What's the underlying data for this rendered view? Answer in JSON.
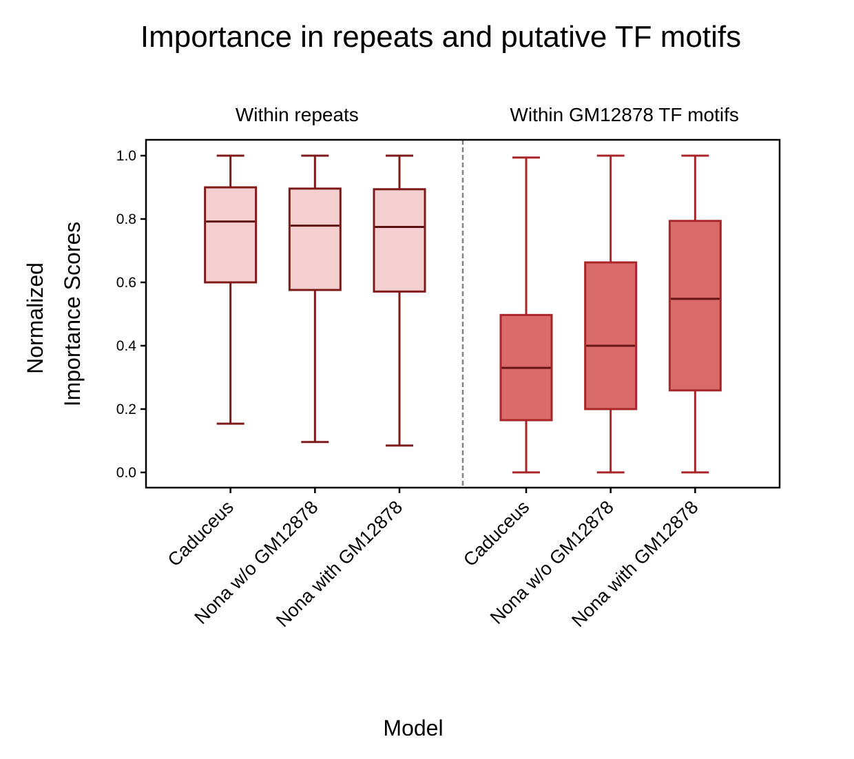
{
  "chart_data": {
    "type": "box",
    "title": "Importance in repeats and putative TF motifs",
    "xlabel": "Model",
    "ylabel_lines": [
      "Normalized",
      "Importance Scores"
    ],
    "ylim": [
      -0.048,
      1.05
    ],
    "yticks": [
      0.0,
      0.2,
      0.4,
      0.6,
      0.8,
      1.0
    ],
    "ytick_labels": [
      "0.0",
      "0.2",
      "0.4",
      "0.6",
      "0.8",
      "1.0"
    ],
    "xlim": [
      -1.0,
      6.5
    ],
    "divider_x": 2.75,
    "grid": false,
    "panels": [
      {
        "label": "Within repeats",
        "center_x": 1.0
      },
      {
        "label": "Within GM12878 TF motifs",
        "center_x": 4.5
      }
    ],
    "colors": {
      "repeats_fill": "#f4cfcf",
      "repeats_edge": "#7f1a1a",
      "repeats_median": "#5a1010",
      "motifs_fill": "#db6a6a",
      "motifs_edge": "#a8262a",
      "motifs_median": "#6a1515",
      "divider": "#808080"
    },
    "boxes": [
      {
        "group": "Within repeats",
        "label": "Caduceus",
        "x": 0.0,
        "whislo": 0.154,
        "q1": 0.6,
        "median": 0.792,
        "q3": 0.9,
        "whishi": 1.0,
        "style": "repeats"
      },
      {
        "group": "Within repeats",
        "label": "Nona w/o GM12878",
        "x": 1.0,
        "whislo": 0.096,
        "q1": 0.576,
        "median": 0.779,
        "q3": 0.896,
        "whishi": 1.0,
        "style": "repeats"
      },
      {
        "group": "Within repeats",
        "label": "Nona with GM12878",
        "x": 2.0,
        "whislo": 0.085,
        "q1": 0.571,
        "median": 0.775,
        "q3": 0.894,
        "whishi": 1.0,
        "style": "repeats"
      },
      {
        "group": "Within GM12878 TF motifs",
        "label": "Caduceus",
        "x": 3.5,
        "whislo": 0.0,
        "q1": 0.165,
        "median": 0.33,
        "q3": 0.497,
        "whishi": 0.994,
        "style": "motifs"
      },
      {
        "group": "Within GM12878 TF motifs",
        "label": "Nona w/o GM12878",
        "x": 4.5,
        "whislo": 0.0,
        "q1": 0.2,
        "median": 0.4,
        "q3": 0.663,
        "whishi": 1.0,
        "style": "motifs"
      },
      {
        "group": "Within GM12878 TF motifs",
        "label": "Nona with GM12878",
        "x": 5.5,
        "whislo": 0.0,
        "q1": 0.259,
        "median": 0.548,
        "q3": 0.794,
        "whishi": 1.0,
        "style": "motifs"
      }
    ]
  }
}
